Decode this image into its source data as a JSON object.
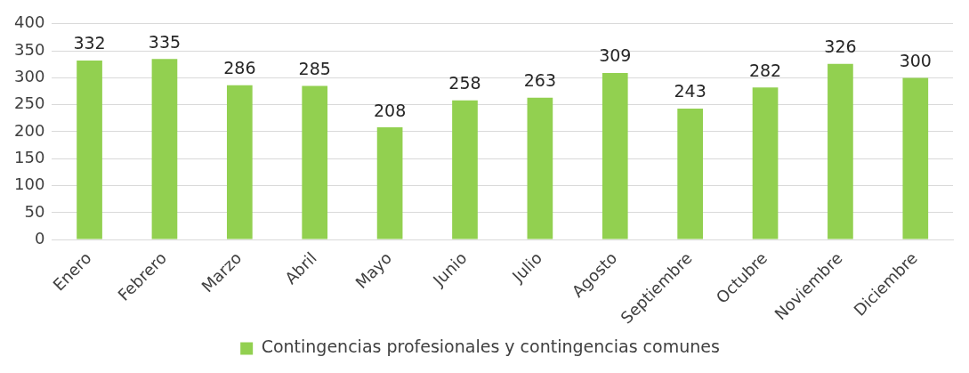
{
  "chart_data": {
    "type": "bar",
    "categories": [
      "Enero",
      "Febrero",
      "Marzo",
      "Abril",
      "Mayo",
      "Junio",
      "Julio",
      "Agosto",
      "Septiembre",
      "Octubre",
      "Noviembre",
      "Diciembre"
    ],
    "series": [
      {
        "name": "Contingencias profesionales y contingencias comunes",
        "color": "#92d050",
        "values": [
          332,
          335,
          286,
          285,
          208,
          258,
          263,
          309,
          243,
          282,
          326,
          300
        ]
      }
    ],
    "ylim": [
      0,
      400
    ],
    "yticks": [
      0,
      50,
      100,
      150,
      200,
      250,
      300,
      350,
      400
    ],
    "grid": "y",
    "legend": "bottom",
    "data_labels": true
  }
}
